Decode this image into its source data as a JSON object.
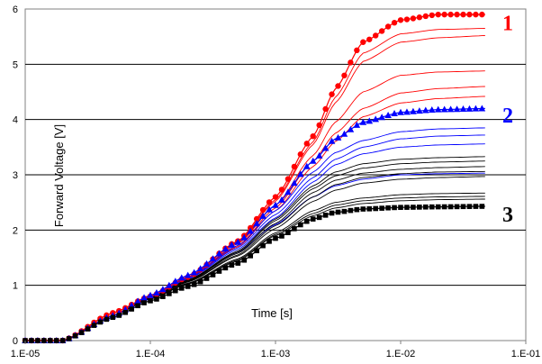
{
  "chart_data": {
    "type": "line",
    "title": "",
    "xlabel": "Time [s]",
    "ylabel": "Forward Voltage [V]",
    "xscale": "log",
    "xlim": [
      1e-05,
      0.1
    ],
    "ylim": [
      0,
      6
    ],
    "grid": "horizontal",
    "legend": "none",
    "x_tick_labels": [
      "1.E-05",
      "1.E-04",
      "1.E-03",
      "1.E-02",
      "1.E-01"
    ],
    "x_tick_values": [
      1e-05,
      0.0001,
      0.001,
      0.01,
      0.1
    ],
    "y_tick_labels": [
      "0",
      "1",
      "2",
      "3",
      "4",
      "5",
      "6"
    ],
    "y_tick_values": [
      0,
      1,
      2,
      3,
      4,
      5,
      6
    ],
    "x": [
      1e-05,
      2e-05,
      5e-05,
      0.0001,
      0.0002,
      0.0005,
      0.001,
      0.002,
      0.003,
      0.005,
      0.01,
      0.02,
      0.05
    ],
    "series": [
      {
        "color": "#ff0000",
        "marker": "circle",
        "values": [
          0,
          0,
          0.5,
          0.8,
          1.15,
          1.8,
          2.6,
          3.7,
          4.55,
          5.4,
          5.8,
          5.9,
          5.9
        ]
      },
      {
        "color": "#ff0000",
        "values": [
          0,
          0,
          0.5,
          0.8,
          1.15,
          1.78,
          2.55,
          3.6,
          4.4,
          5.2,
          5.55,
          5.63,
          5.65
        ]
      },
      {
        "color": "#ff0000",
        "values": [
          0,
          0,
          0.5,
          0.8,
          1.15,
          1.78,
          2.52,
          3.55,
          4.3,
          5.05,
          5.4,
          5.48,
          5.52
        ]
      },
      {
        "color": "#ff0000",
        "values": [
          0,
          0,
          0.5,
          0.8,
          1.13,
          1.75,
          2.45,
          3.35,
          3.95,
          4.5,
          4.8,
          4.86,
          4.88
        ]
      },
      {
        "color": "#ff0000",
        "values": [
          0,
          0,
          0.5,
          0.8,
          1.12,
          1.72,
          2.4,
          3.25,
          3.75,
          4.2,
          4.48,
          4.56,
          4.6
        ]
      },
      {
        "color": "#ff0000",
        "values": [
          0,
          0,
          0.5,
          0.8,
          1.12,
          1.7,
          2.35,
          3.15,
          3.6,
          4.05,
          4.3,
          4.38,
          4.42
        ]
      },
      {
        "color": "#0000ff",
        "marker": "triangle",
        "values": [
          0,
          0,
          0.45,
          0.82,
          1.18,
          1.78,
          2.45,
          3.25,
          3.65,
          3.95,
          4.13,
          4.18,
          4.2
        ]
      },
      {
        "color": "#0000ff",
        "values": [
          0,
          0,
          0.45,
          0.8,
          1.15,
          1.72,
          2.35,
          3.05,
          3.4,
          3.62,
          3.78,
          3.83,
          3.85
        ]
      },
      {
        "color": "#0000ff",
        "values": [
          0,
          0,
          0.45,
          0.8,
          1.13,
          1.68,
          2.28,
          2.95,
          3.28,
          3.5,
          3.65,
          3.7,
          3.72
        ]
      },
      {
        "color": "#0000ff",
        "values": [
          0,
          0,
          0.45,
          0.8,
          1.12,
          1.65,
          2.22,
          2.87,
          3.18,
          3.38,
          3.5,
          3.54,
          3.56
        ]
      },
      {
        "color": "#0000ff",
        "values": [
          0,
          0,
          0.45,
          0.78,
          1.1,
          1.6,
          2.1,
          2.6,
          2.8,
          2.92,
          3.0,
          3.02,
          3.03
        ]
      },
      {
        "color": "#000000",
        "values": [
          0,
          0,
          0.45,
          0.78,
          1.1,
          1.62,
          2.2,
          2.8,
          3.05,
          3.2,
          3.28,
          3.31,
          3.33
        ]
      },
      {
        "color": "#000000",
        "values": [
          0,
          0,
          0.45,
          0.78,
          1.09,
          1.6,
          2.17,
          2.75,
          2.98,
          3.12,
          3.2,
          3.23,
          3.25
        ]
      },
      {
        "color": "#000000",
        "values": [
          0,
          0,
          0.45,
          0.78,
          1.08,
          1.58,
          2.12,
          2.68,
          2.9,
          3.03,
          3.1,
          3.13,
          3.15
        ]
      },
      {
        "color": "#000000",
        "values": [
          0,
          0,
          0.45,
          0.77,
          1.07,
          1.55,
          2.08,
          2.6,
          2.82,
          2.95,
          3.02,
          3.05,
          3.06
        ]
      },
      {
        "color": "#000000",
        "values": [
          0,
          0,
          0.45,
          0.77,
          1.06,
          1.53,
          2.03,
          2.52,
          2.72,
          2.85,
          2.92,
          2.95,
          2.97
        ]
      },
      {
        "color": "#000000",
        "values": [
          0,
          0,
          0.45,
          0.76,
          1.04,
          1.48,
          1.95,
          2.35,
          2.5,
          2.58,
          2.64,
          2.66,
          2.67
        ]
      },
      {
        "color": "#000000",
        "values": [
          0,
          0,
          0.45,
          0.76,
          1.03,
          1.46,
          1.92,
          2.3,
          2.45,
          2.53,
          2.58,
          2.6,
          2.61
        ]
      },
      {
        "color": "#000000",
        "values": [
          0,
          0,
          0.45,
          0.75,
          1.02,
          1.44,
          1.9,
          2.26,
          2.4,
          2.48,
          2.53,
          2.55,
          2.56
        ]
      },
      {
        "color": "#000000",
        "marker": "square",
        "values": [
          0,
          0,
          0.42,
          0.72,
          0.98,
          1.4,
          1.85,
          2.2,
          2.32,
          2.38,
          2.41,
          2.42,
          2.43
        ]
      }
    ],
    "annotations": [
      {
        "text": "1",
        "x": 0.065,
        "y": 5.75,
        "color": "#ff0000"
      },
      {
        "text": "2",
        "x": 0.065,
        "y": 4.08,
        "color": "#0000ff"
      },
      {
        "text": "3",
        "x": 0.065,
        "y": 2.28,
        "color": "#000000"
      }
    ]
  }
}
